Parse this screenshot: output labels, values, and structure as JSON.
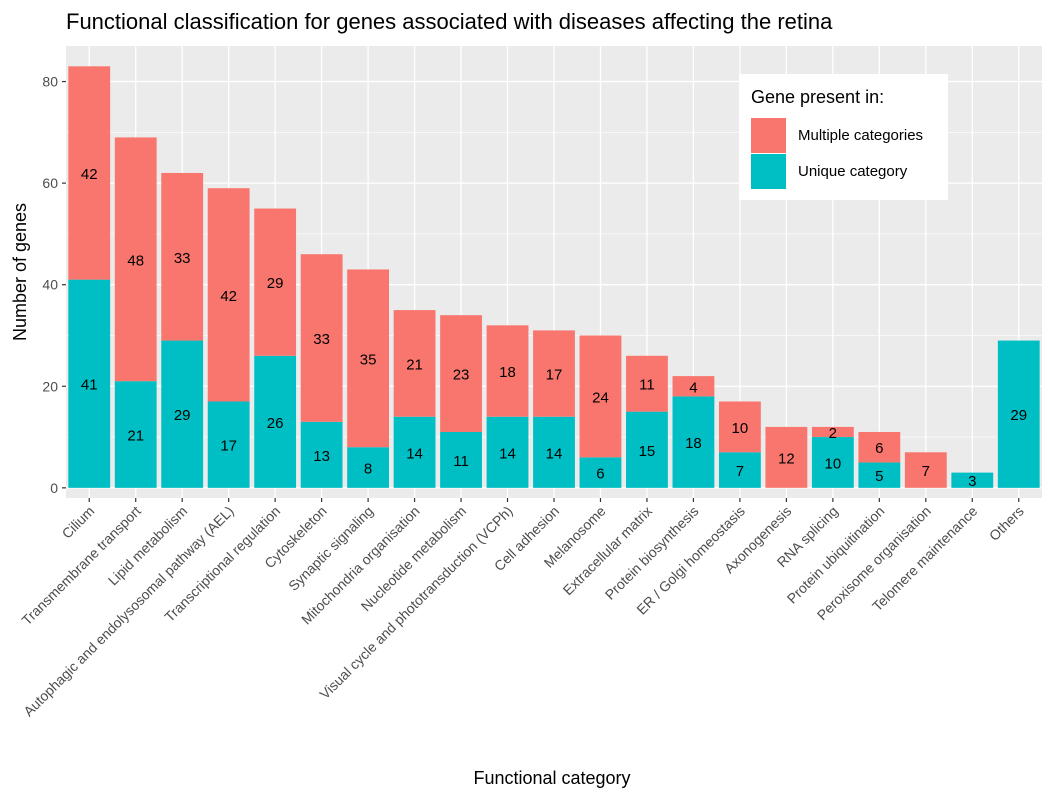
{
  "chart_data": {
    "type": "bar",
    "stacked": true,
    "title": "Functional classification for genes associated with diseases affecting the retina",
    "xlabel": "Functional category",
    "ylabel": "Number of genes",
    "ylim": [
      -2,
      87
    ],
    "yticks": [
      0,
      20,
      40,
      60,
      80
    ],
    "grid": true,
    "legend": {
      "title": "Gene present in:",
      "position": "top-right"
    },
    "categories": [
      "Cilium",
      "Transmembrane transport",
      "Lipid metabolism",
      "Autophagic and endolysosomal pathway (AEL)",
      "Transcriptional regulation",
      "Cytoskeleton",
      "Synaptic signaling",
      "Mitochondria organisation",
      "Nucleotide metabolism",
      "Visual cycle and phototransduction (VCPh)",
      "Cell adhesion",
      "Melanosome",
      "Extracellular matrix",
      "Protein biosynthesis",
      "ER / Golgi homeostasis",
      "Axonogenesis",
      "RNA splicing",
      "Protein ubiquitination",
      "Peroxisome organisation",
      "Telomere maintenance",
      "Others"
    ],
    "series": [
      {
        "name": "Unique category",
        "color": "#00BFC4",
        "values": [
          41,
          21,
          29,
          17,
          26,
          13,
          8,
          14,
          11,
          14,
          14,
          6,
          15,
          18,
          7,
          0,
          10,
          5,
          0,
          3,
          29
        ]
      },
      {
        "name": "Multiple categories",
        "color": "#F8766D",
        "values": [
          42,
          48,
          33,
          42,
          29,
          33,
          35,
          21,
          23,
          18,
          17,
          24,
          11,
          4,
          10,
          12,
          2,
          6,
          7,
          0,
          0
        ]
      }
    ],
    "legend_order": [
      "Multiple categories",
      "Unique category"
    ],
    "colors": {
      "panel_background": "#EBEBEB",
      "grid_line": "#FFFFFF",
      "axis_text": "#4D4D4D",
      "tick": "#333333"
    }
  }
}
